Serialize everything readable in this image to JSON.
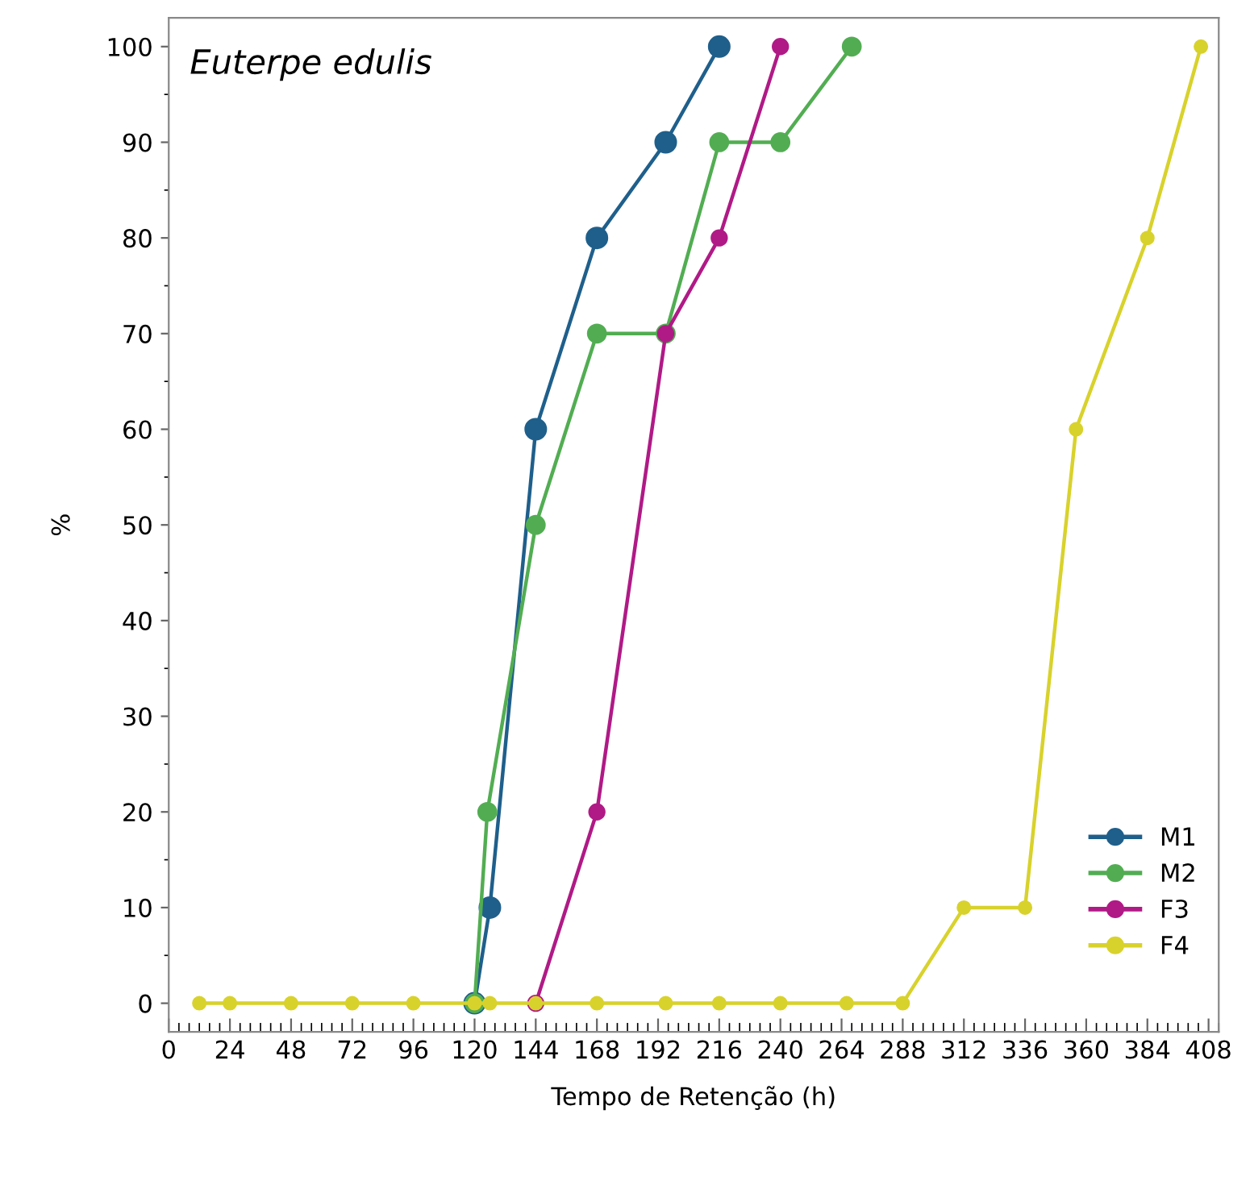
{
  "chart_data": {
    "type": "line",
    "title": "Euterpe edulis",
    "xlabel": "Tempo de Retenção (h)",
    "ylabel": "%",
    "xlim": [
      0,
      412
    ],
    "ylim": [
      -3,
      103
    ],
    "xticks": [
      0,
      24,
      48,
      72,
      96,
      120,
      144,
      168,
      192,
      216,
      240,
      264,
      288,
      312,
      336,
      360,
      384,
      408
    ],
    "yticks": [
      0,
      10,
      20,
      30,
      40,
      50,
      60,
      70,
      80,
      90,
      100
    ],
    "marker": "circle",
    "line_style": "solid",
    "legend": "bottom right",
    "grid": false,
    "series": [
      {
        "name": "M1",
        "color": "#1f5f8b",
        "x": [
          120,
          126,
          144,
          168,
          195,
          216
        ],
        "values": [
          0,
          10,
          60,
          80,
          90,
          100
        ]
      },
      {
        "name": "M2",
        "color": "#52ad52",
        "x": [
          120,
          125,
          144,
          168,
          195,
          216,
          240,
          268
        ],
        "values": [
          0,
          20,
          50,
          70,
          70,
          90,
          90,
          100
        ]
      },
      {
        "name": "F3",
        "color": "#b01a86",
        "x": [
          144,
          168,
          195,
          216,
          240
        ],
        "values": [
          0,
          20,
          70,
          80,
          100
        ]
      },
      {
        "name": "F4",
        "color": "#d8d22c",
        "x": [
          12,
          24,
          48,
          72,
          96,
          120,
          126,
          144,
          168,
          195,
          216,
          240,
          266,
          288,
          312,
          336,
          356,
          384,
          405
        ],
        "values": [
          0,
          0,
          0,
          0,
          0,
          0,
          0,
          0,
          0,
          0,
          0,
          0,
          0,
          0,
          10,
          10,
          60,
          80,
          100
        ]
      }
    ]
  }
}
